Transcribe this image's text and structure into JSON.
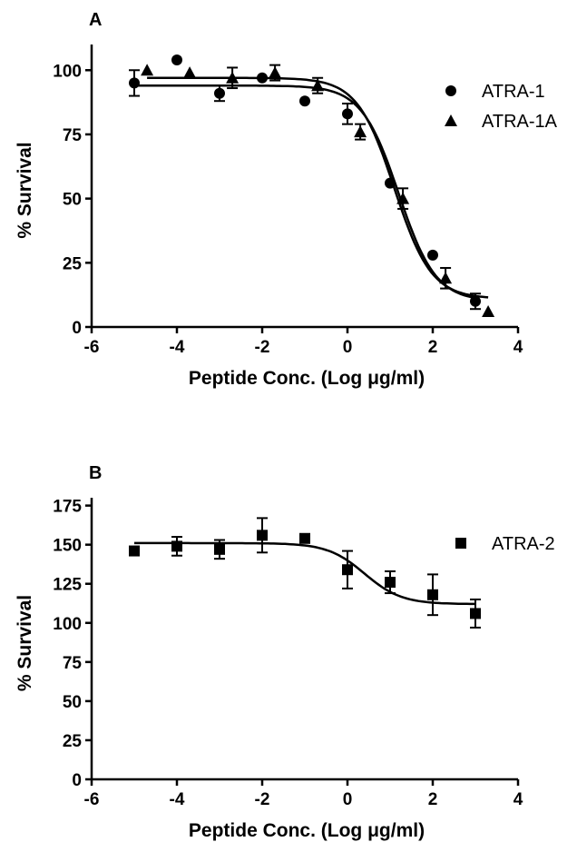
{
  "chart_data": [
    {
      "type": "scatter",
      "panel_label": "A",
      "title": "",
      "xlabel": "Peptide Conc. (Log μg/ml)",
      "ylabel": "% Survival",
      "xlim": [
        -6,
        4
      ],
      "ylim": [
        0,
        110
      ],
      "x_ticks": [
        -6,
        -4,
        -2,
        0,
        2,
        4
      ],
      "y_ticks": [
        0,
        25,
        50,
        75,
        100
      ],
      "grid": false,
      "legend_position": "top-right",
      "series": [
        {
          "name": "ATRA-1",
          "marker": "circle",
          "points": [
            {
              "x": -5.0,
              "y": 95,
              "err": 5
            },
            {
              "x": -4.0,
              "y": 104,
              "err": 0
            },
            {
              "x": -3.0,
              "y": 91,
              "err": 3
            },
            {
              "x": -2.0,
              "y": 97,
              "err": 0
            },
            {
              "x": -1.0,
              "y": 88,
              "err": 0
            },
            {
              "x": 0.0,
              "y": 83,
              "err": 4
            },
            {
              "x": 1.0,
              "y": 56,
              "err": 0
            },
            {
              "x": 2.0,
              "y": 28,
              "err": 0
            },
            {
              "x": 3.0,
              "y": 10,
              "err": 3
            }
          ],
          "fit": {
            "top": 94,
            "bottom": 10,
            "logEC50": 1.2,
            "hill": 1.0
          }
        },
        {
          "name": "ATRA-1A",
          "marker": "triangle",
          "points": [
            {
              "x": -4.7,
              "y": 100,
              "err": 0
            },
            {
              "x": -3.7,
              "y": 99,
              "err": 0
            },
            {
              "x": -2.7,
              "y": 97,
              "err": 4
            },
            {
              "x": -1.7,
              "y": 99,
              "err": 3
            },
            {
              "x": -0.7,
              "y": 94,
              "err": 3
            },
            {
              "x": 0.3,
              "y": 76,
              "err": 3
            },
            {
              "x": 1.3,
              "y": 50,
              "err": 4
            },
            {
              "x": 2.3,
              "y": 19,
              "err": 4
            },
            {
              "x": 3.3,
              "y": 6,
              "err": 0
            }
          ],
          "fit": {
            "top": 97,
            "bottom": 11,
            "logEC50": 1.1,
            "hill": 1.0
          }
        }
      ]
    },
    {
      "type": "scatter",
      "panel_label": "B",
      "title": "",
      "xlabel": "Peptide Conc. (Log μg/ml)",
      "ylabel": "% Survival",
      "xlim": [
        -6,
        4
      ],
      "ylim": [
        0,
        180
      ],
      "x_ticks": [
        -6,
        -4,
        -2,
        0,
        2,
        4
      ],
      "y_ticks": [
        0,
        25,
        50,
        75,
        100,
        125,
        150,
        175
      ],
      "grid": false,
      "legend_position": "top-right",
      "series": [
        {
          "name": "ATRA-2",
          "marker": "square",
          "points": [
            {
              "x": -5.0,
              "y": 146,
              "err": 0
            },
            {
              "x": -4.0,
              "y": 149,
              "err": 6
            },
            {
              "x": -3.0,
              "y": 147,
              "err": 6
            },
            {
              "x": -2.0,
              "y": 156,
              "err": 11
            },
            {
              "x": -1.0,
              "y": 154,
              "err": 2
            },
            {
              "x": 0.0,
              "y": 134,
              "err": 12
            },
            {
              "x": 1.0,
              "y": 126,
              "err": 7
            },
            {
              "x": 2.0,
              "y": 118,
              "err": 13
            },
            {
              "x": 3.0,
              "y": 106,
              "err": 9
            }
          ],
          "fit": {
            "top": 151,
            "bottom": 112,
            "logEC50": 0.4,
            "hill": 1.0
          }
        }
      ]
    }
  ]
}
